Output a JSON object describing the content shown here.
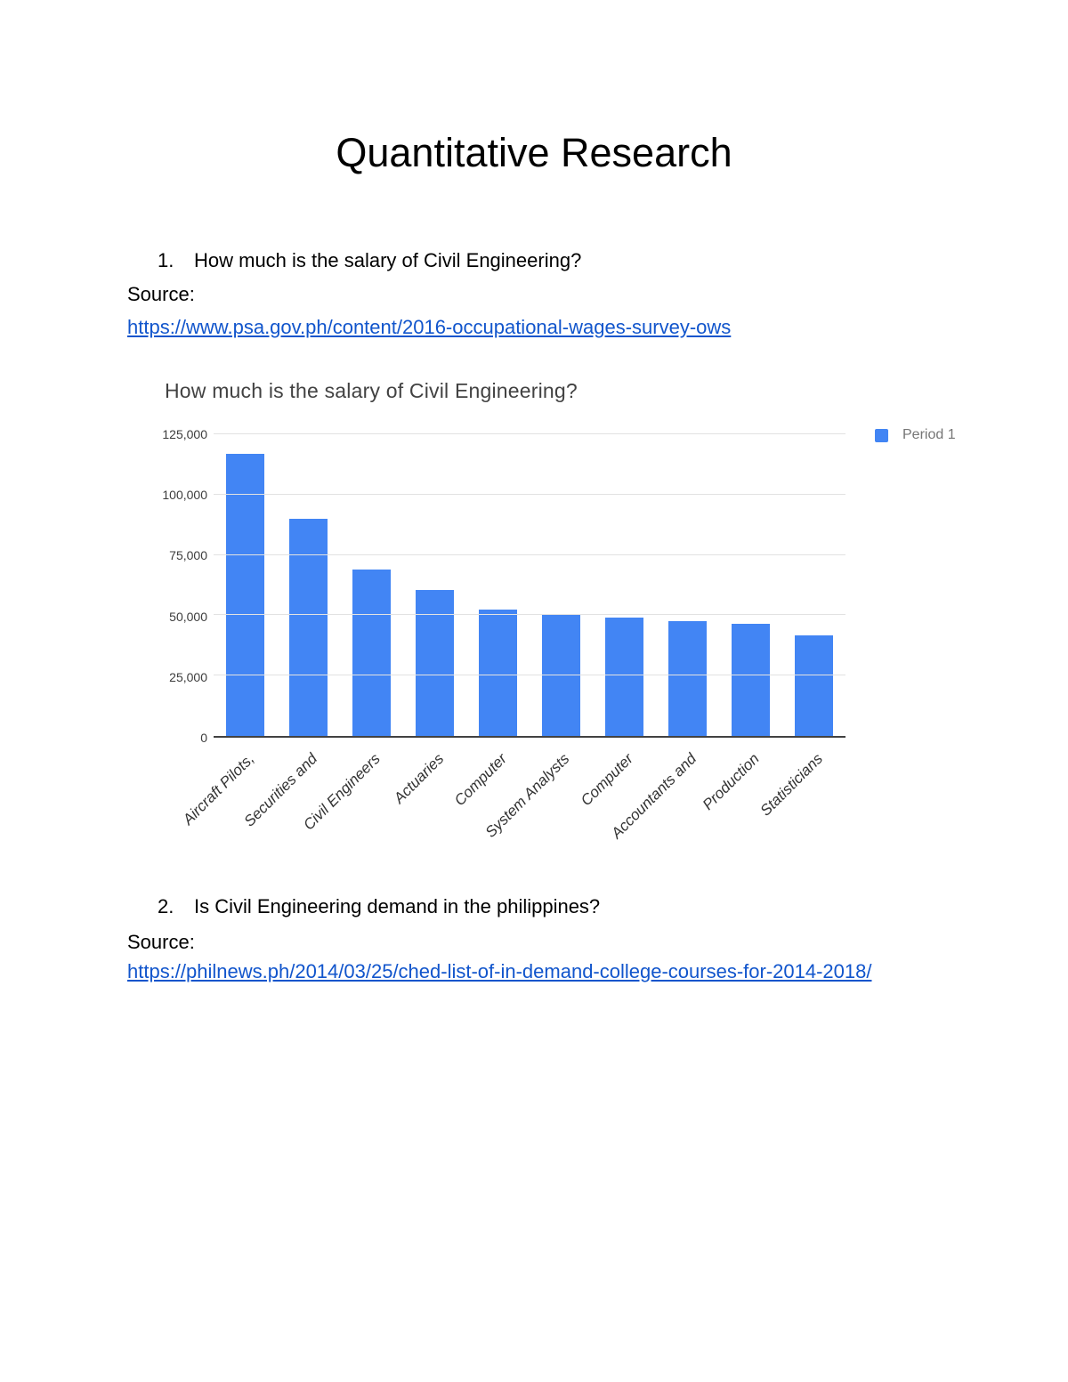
{
  "page": {
    "title": "Quantitative Research"
  },
  "sections": [
    {
      "number": "1.",
      "question": "How much is the salary of Civil Engineering?",
      "source_label": "Source:",
      "link": "https://www.psa.gov.ph/content/2016-occupational-wages-survey-ows"
    },
    {
      "number": "2.",
      "question": "Is Civil Engineering demand in the philippines?",
      "source_label": "Source:",
      "link": "https://philnews.ph/2014/03/25/ched-list-of-in-demand-college-courses-for-2014-2018/"
    }
  ],
  "chart_data": {
    "type": "bar",
    "title": "How much is the salary of Civil Engineering?",
    "categories": [
      "Aircraft Pilots,",
      "Securities and",
      "Civil Engineers",
      "Actuaries",
      "Computer",
      "System Analysts",
      "Computer",
      "Accountants and",
      "Production",
      "Statisticians"
    ],
    "series": [
      {
        "name": "Period 1",
        "values": [
          117000,
          90000,
          69000,
          60500,
          52300,
          50700,
          49000,
          47500,
          46500,
          41500
        ]
      }
    ],
    "xlabel": "",
    "ylabel": "",
    "ylim": [
      0,
      125000
    ],
    "y_ticks": [
      0,
      25000,
      50000,
      75000,
      100000,
      125000
    ],
    "y_tick_labels": [
      "0",
      "25,000",
      "50,000",
      "75,000",
      "100,000",
      "125,000"
    ],
    "legend_position": "right",
    "grid": true,
    "bar_color": "#4285f4"
  },
  "colors": {
    "link": "#1155cc",
    "bar": "#4285f4",
    "gridline": "#e2e2e2",
    "axis_baseline": "#424242",
    "chart_title_text": "#424242",
    "legend_text": "#757575"
  }
}
